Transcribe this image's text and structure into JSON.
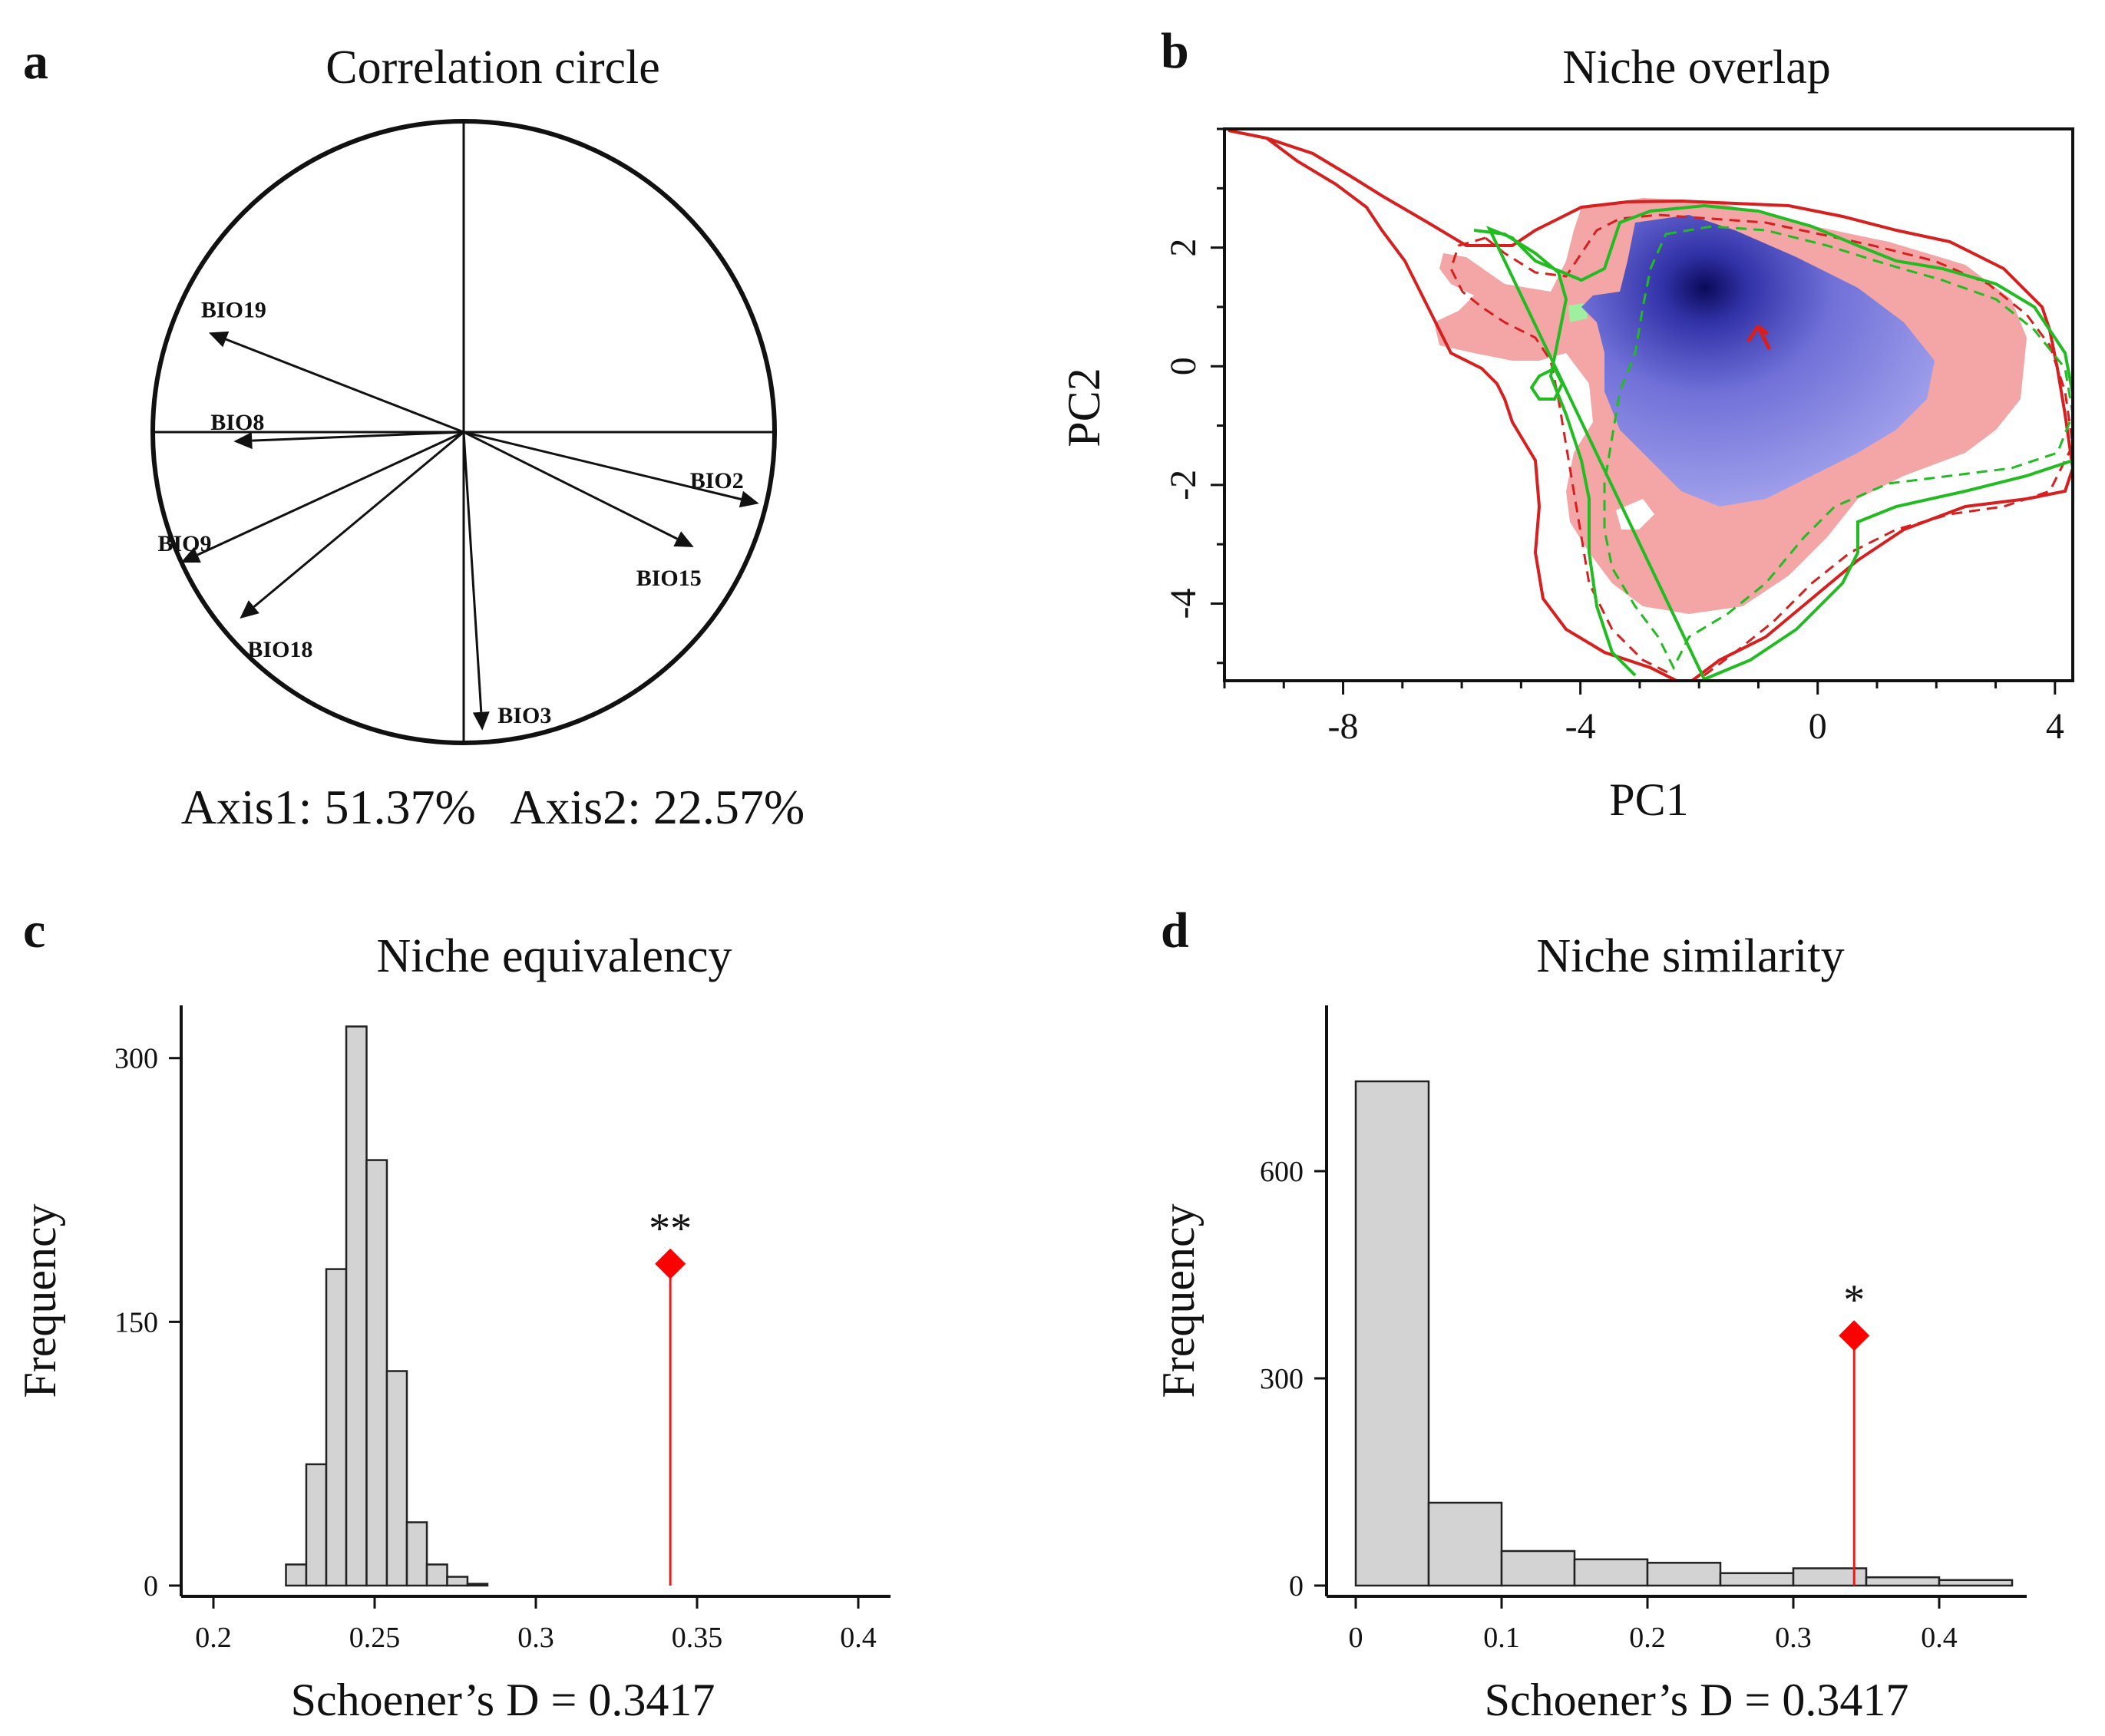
{
  "panels": {
    "a": {
      "letter": "a",
      "title": "Correlation circle",
      "axes_caption": "Axis1: 51.37%   Axis2: 22.57%"
    },
    "b": {
      "letter": "b"
    },
    "c": {
      "letter": "c",
      "star": "**"
    },
    "d": {
      "letter": "d",
      "star": "*"
    }
  },
  "chart_data": [
    {
      "type": "biplot",
      "panel": "a",
      "title": "Correlation circle",
      "xlabel": "Axis1: 51.37%",
      "ylabel": "Axis2: 22.57%",
      "xlim": [
        -1,
        1
      ],
      "ylim": [
        -1,
        1
      ],
      "vectors": [
        {
          "name": "BIO19",
          "x": -0.82,
          "y": 0.32
        },
        {
          "name": "BIO8",
          "x": -0.74,
          "y": -0.03
        },
        {
          "name": "BIO9",
          "x": -0.91,
          "y": -0.42
        },
        {
          "name": "BIO18",
          "x": -0.72,
          "y": -0.6
        },
        {
          "name": "BIO3",
          "x": 0.06,
          "y": -0.96
        },
        {
          "name": "BIO15",
          "x": 0.74,
          "y": -0.37
        },
        {
          "name": "BIO2",
          "x": 0.95,
          "y": -0.23
        }
      ]
    },
    {
      "type": "heatmap",
      "panel": "b",
      "title": "Niche overlap",
      "xlabel": "PC1",
      "ylabel": "PC2",
      "xlim": [
        -10,
        4.3
      ],
      "ylim": [
        -5.3,
        4
      ],
      "xticks": [
        -8,
        -4,
        0,
        4
      ],
      "yticks": [
        -4,
        -2,
        0,
        2
      ],
      "colors": {
        "species1": "#d62020",
        "species2": "#22bb22",
        "overlap": "#4444dd"
      }
    },
    {
      "type": "histogram",
      "panel": "c",
      "title": "Niche equivalency",
      "xlabel": "Schoener’s D = 0.3417",
      "ylabel": "Frequency",
      "xlim": [
        0.19,
        0.41
      ],
      "ylim": [
        0,
        330
      ],
      "xticks": [
        0.2,
        0.25,
        0.3,
        0.35,
        0.4
      ],
      "xtick_labels": [
        "0.2",
        "0.25",
        "0.3",
        "0.35",
        "0.4"
      ],
      "yticks": [
        0,
        150,
        300
      ],
      "bin_edges": [
        0.2225,
        0.2288,
        0.235,
        0.2412,
        0.2475,
        0.2538,
        0.26,
        0.2662,
        0.2725,
        0.2788,
        0.285
      ],
      "values": [
        12,
        69,
        180,
        318,
        242,
        122,
        36,
        12,
        5,
        1
      ],
      "observed": 0.3417,
      "observed_marker_height": 183,
      "significance": "**"
    },
    {
      "type": "histogram",
      "panel": "d",
      "title": "Niche similarity",
      "xlabel": "Schoener’s D = 0.3417",
      "ylabel": "Frequency",
      "xlim": [
        -0.02,
        0.46
      ],
      "ylim": [
        0,
        840
      ],
      "xticks": [
        0,
        0.1,
        0.2,
        0.3,
        0.4
      ],
      "xtick_labels": [
        "0",
        "0.1",
        "0.2",
        "0.3",
        "0.4"
      ],
      "yticks": [
        0,
        300,
        600
      ],
      "bin_edges": [
        0,
        0.05,
        0.1,
        0.15,
        0.2,
        0.25,
        0.3,
        0.35,
        0.4,
        0.45
      ],
      "values": [
        730,
        120,
        50,
        38,
        33,
        18,
        25,
        12,
        8
      ],
      "observed": 0.3417,
      "observed_marker_height": 362,
      "significance": "*"
    }
  ]
}
